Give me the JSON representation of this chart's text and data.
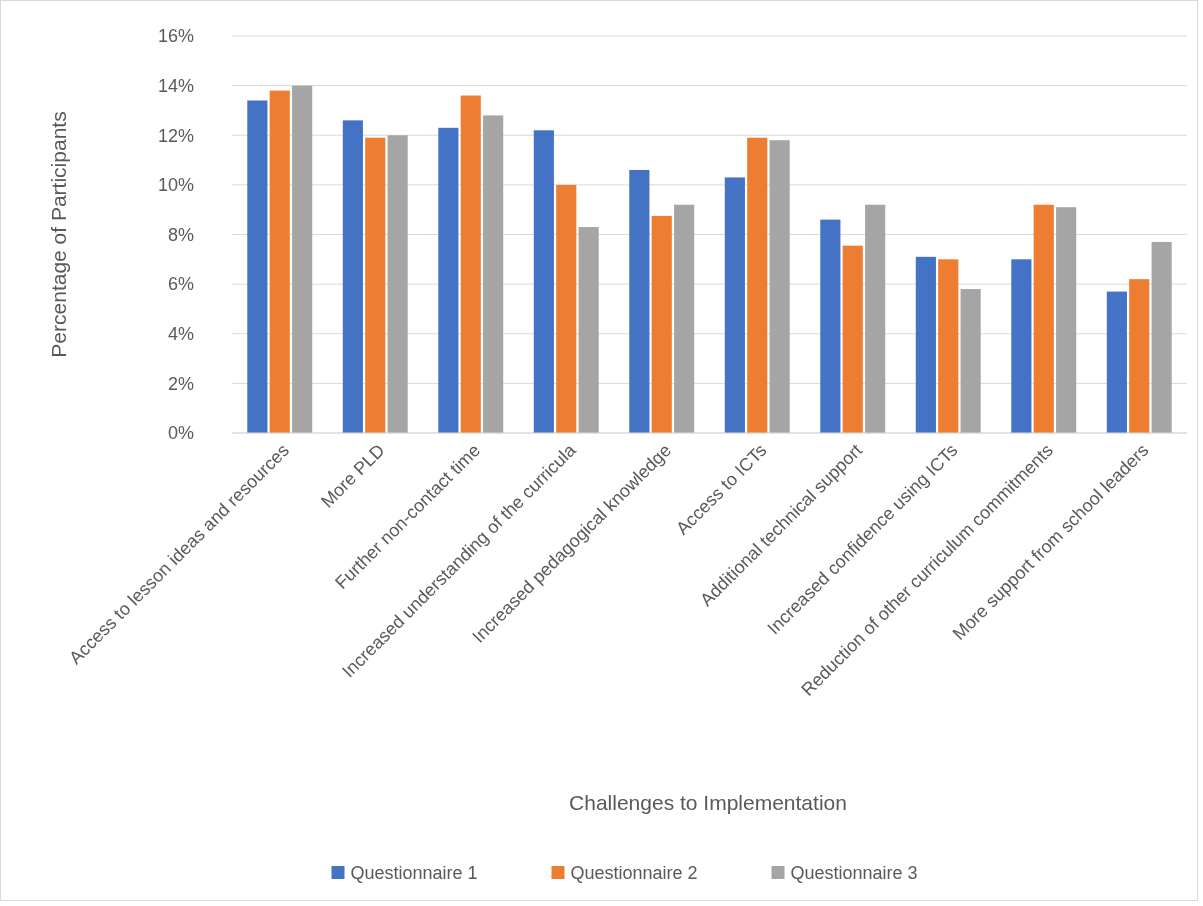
{
  "chart_data": {
    "type": "bar",
    "xlabel": "Challenges to Implementation",
    "ylabel": "Percentage of Participants",
    "categories": [
      "Access to lesson ideas and resources",
      "More PLD",
      "Further non-contact time",
      "Increased understanding of the curricula",
      "Increased pedagogical knowledge",
      "Access to ICTs",
      "Additional technical support",
      "Increased confidence using ICTs",
      "Reduction of other curriculum commitments",
      "More support from school leaders"
    ],
    "series": [
      {
        "name": "Questionnaire 1",
        "color": "#4472c4",
        "values": [
          13.4,
          12.6,
          12.3,
          12.2,
          10.6,
          10.3,
          8.6,
          7.1,
          7.0,
          5.7
        ]
      },
      {
        "name": "Questionnaire 2",
        "color": "#ed7d31",
        "values": [
          13.8,
          11.9,
          13.6,
          10.0,
          8.75,
          11.9,
          7.55,
          7.0,
          9.2,
          6.2
        ]
      },
      {
        "name": "Questionnaire 3",
        "color": "#a5a5a5",
        "values": [
          14.0,
          12.0,
          12.8,
          8.3,
          9.2,
          11.8,
          9.2,
          5.8,
          9.1,
          7.7
        ]
      }
    ],
    "ylim": [
      0,
      16
    ],
    "yticks": [
      {
        "value": 0,
        "label": "0%"
      },
      {
        "value": 2,
        "label": "2%"
      },
      {
        "value": 4,
        "label": "4%"
      },
      {
        "value": 6,
        "label": "6%"
      },
      {
        "value": 8,
        "label": "8%"
      },
      {
        "value": 10,
        "label": "10%"
      },
      {
        "value": 12,
        "label": "12%"
      },
      {
        "value": 14,
        "label": "14%"
      },
      {
        "value": 16,
        "label": "16%"
      }
    ],
    "grid": "y",
    "legend": "bottom"
  }
}
